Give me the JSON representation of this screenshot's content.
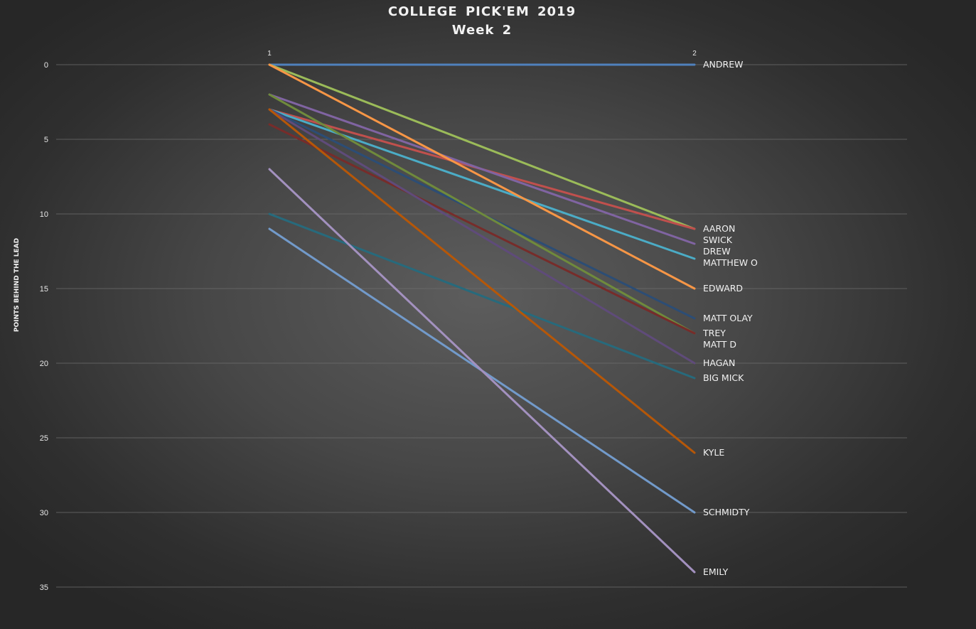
{
  "chart_data": {
    "type": "line",
    "title": "COLLEGE PICK'EM 2019",
    "subtitle": "Week 2",
    "ylabel": "POINTS BEHIND THE LEAD",
    "x": [
      1,
      2
    ],
    "x_tick_labels": [
      "1",
      "2"
    ],
    "ylim": [
      0,
      35
    ],
    "y_reversed": true,
    "y_ticks": [
      0,
      5,
      10,
      15,
      20,
      25,
      30,
      35
    ],
    "grid": true,
    "legend": "none",
    "end_labels": true,
    "series": [
      {
        "name": "ANDREW",
        "values": [
          0,
          0
        ],
        "color": "#4f81bd"
      },
      {
        "name": "AARON",
        "values": [
          0,
          11
        ],
        "color": "#9bbb59"
      },
      {
        "name": "SWICK",
        "values": [
          3,
          11
        ],
        "color": "#c0504d"
      },
      {
        "name": "DREW",
        "values": [
          2,
          12
        ],
        "color": "#8064a2"
      },
      {
        "name": "MATTHEW O",
        "values": [
          3,
          13
        ],
        "color": "#4bacc6"
      },
      {
        "name": "EDWARD",
        "values": [
          0,
          15
        ],
        "color": "#f79646"
      },
      {
        "name": "MATT OLAY",
        "values": [
          3,
          17
        ],
        "color": "#2c4d75"
      },
      {
        "name": "TREY",
        "values": [
          2,
          18
        ],
        "color": "#6f8a3c"
      },
      {
        "name": "MATT D",
        "values": [
          4,
          18
        ],
        "color": "#772c2a"
      },
      {
        "name": "HAGAN",
        "values": [
          3,
          20
        ],
        "color": "#5f4b7a"
      },
      {
        "name": "BIG MICK",
        "values": [
          10,
          21
        ],
        "color": "#276a7c"
      },
      {
        "name": "KYLE",
        "values": [
          3,
          26
        ],
        "color": "#b65708"
      },
      {
        "name": "SCHMIDTY",
        "values": [
          11,
          30
        ],
        "color": "#729aca"
      },
      {
        "name": "EMILY",
        "values": [
          7,
          34
        ],
        "color": "#a391bf"
      }
    ]
  }
}
